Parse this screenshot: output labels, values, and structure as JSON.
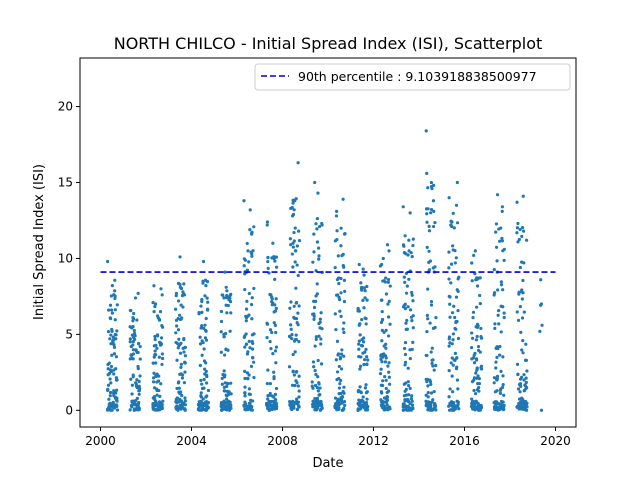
{
  "chart_data": {
    "type": "scatter",
    "title": "NORTH CHILCO - Initial Spread Index (ISI), Scatterplot",
    "xlabel": "Date",
    "ylabel": "Initial Spread Index (ISI)",
    "xlim": [
      1999.1,
      2020.9
    ],
    "ylim": [
      -1.1,
      23.2
    ],
    "xticks": [
      2000,
      2004,
      2008,
      2012,
      2016,
      2020
    ],
    "xtick_labels": [
      "2000",
      "2004",
      "2008",
      "2012",
      "2016",
      "2020"
    ],
    "yticks": [
      0,
      5,
      10,
      15,
      20
    ],
    "ytick_labels": [
      "0",
      "5",
      "10",
      "15",
      "20"
    ],
    "grid": false,
    "legend": {
      "placement": "top-right",
      "entries": [
        {
          "label": "90th percentile : 9.103918838500977",
          "style": "dashed-line",
          "color": "#0000cc"
        }
      ]
    },
    "reference_line": {
      "y": 9.103918838500977,
      "x_start": 2000,
      "x_end": 2020,
      "color": "#0000cc"
    },
    "marker_color": "#1f77b4",
    "season_clusters": [
      {
        "year": 2000,
        "x_start": 2000.3,
        "x_end": 2000.75,
        "max": 9.8,
        "highs": [
          9.8,
          6.6,
          6.4,
          5.2
        ]
      },
      {
        "year": 2001,
        "x_start": 2001.3,
        "x_end": 2001.75,
        "max": 7.7,
        "highs": [
          7.7,
          7.4,
          5.5,
          4.4
        ]
      },
      {
        "year": 2002,
        "x_start": 2002.3,
        "x_end": 2002.75,
        "max": 8.2,
        "highs": [
          8.2,
          8.0,
          7.6,
          7.0
        ]
      },
      {
        "year": 2003,
        "x_start": 2003.3,
        "x_end": 2003.75,
        "max": 10.1,
        "highs": [
          10.1,
          7.8,
          7.2,
          6.8
        ]
      },
      {
        "year": 2004,
        "x_start": 2004.3,
        "x_end": 2004.75,
        "max": 9.8,
        "highs": [
          9.8,
          8.5,
          7.3,
          6.6
        ]
      },
      {
        "year": 2005,
        "x_start": 2005.3,
        "x_end": 2005.75,
        "max": 9.1,
        "highs": [
          9.1,
          8.1,
          6.9,
          5.0
        ]
      },
      {
        "year": 2006,
        "x_start": 2006.3,
        "x_end": 2006.75,
        "max": 13.8,
        "highs": [
          13.8,
          13.2,
          11.6,
          10.5
        ]
      },
      {
        "year": 2007,
        "x_start": 2007.3,
        "x_end": 2007.75,
        "max": 12.4,
        "highs": [
          12.4,
          12.2,
          11.0,
          10.0
        ]
      },
      {
        "year": 2008,
        "x_start": 2008.3,
        "x_end": 2008.75,
        "max": 16.3,
        "highs": [
          16.3,
          13.3,
          12.0,
          11.3
        ]
      },
      {
        "year": 2009,
        "x_start": 2009.3,
        "x_end": 2009.75,
        "max": 15.0,
        "highs": [
          15.0,
          14.3,
          12.2,
          11.6
        ]
      },
      {
        "year": 2010,
        "x_start": 2010.3,
        "x_end": 2010.75,
        "max": 13.9,
        "highs": [
          13.9,
          13.1,
          12.8,
          11.6
        ]
      },
      {
        "year": 2011,
        "x_start": 2011.3,
        "x_end": 2011.75,
        "max": 9.6,
        "highs": [
          9.6,
          9.3,
          8.9,
          8.0
        ]
      },
      {
        "year": 2012,
        "x_start": 2012.3,
        "x_end": 2012.75,
        "max": 10.9,
        "highs": [
          10.9,
          10.5,
          10.0,
          9.6
        ]
      },
      {
        "year": 2013,
        "x_start": 2013.3,
        "x_end": 2013.75,
        "max": 13.4,
        "highs": [
          13.4,
          13.0,
          11.2,
          10.5
        ]
      },
      {
        "year": 2014,
        "x_start": 2014.3,
        "x_end": 2014.75,
        "max": 18.4,
        "highs": [
          18.4,
          13.8,
          13.1,
          12.1
        ]
      },
      {
        "year": 2015,
        "x_start": 2015.3,
        "x_end": 2015.75,
        "max": 15.0,
        "highs": [
          15.0,
          14.0,
          13.5,
          12.4
        ]
      },
      {
        "year": 2016,
        "x_start": 2016.3,
        "x_end": 2016.75,
        "max": 10.5,
        "highs": [
          10.5,
          10.2,
          9.7,
          9.0
        ]
      },
      {
        "year": 2017,
        "x_start": 2017.3,
        "x_end": 2017.75,
        "max": 14.2,
        "highs": [
          14.2,
          13.4,
          13.1,
          12.0
        ]
      },
      {
        "year": 2018,
        "x_start": 2018.3,
        "x_end": 2018.75,
        "max": 14.1,
        "highs": [
          14.1,
          13.7,
          12.3,
          11.8
        ]
      },
      {
        "year": 2019,
        "x_start": 2019.3,
        "x_end": 2019.45,
        "max": 8.6,
        "highs": [
          8.6,
          7.0,
          5.6,
          5.2
        ]
      }
    ]
  }
}
